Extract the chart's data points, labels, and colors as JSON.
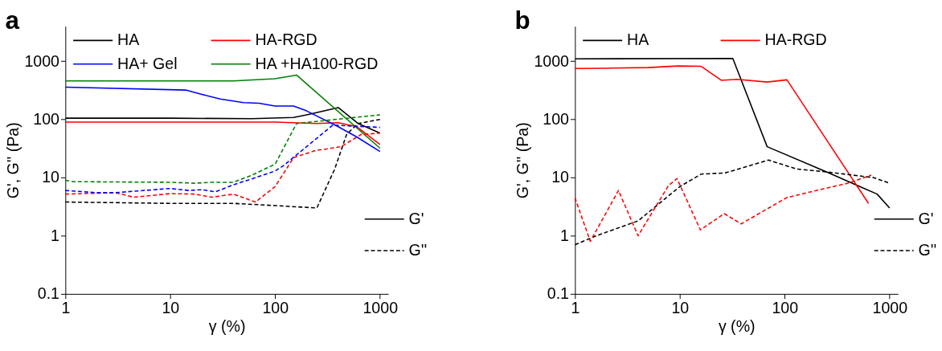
{
  "chart_data": [
    {
      "type": "line",
      "title": "a",
      "xlabel": "γ (%)",
      "ylabel": "G', G'' (Pa)",
      "log": "xy",
      "xlim": [
        1,
        1200
      ],
      "ylim": [
        0.1,
        4000
      ],
      "xticks": [
        1,
        10,
        100,
        1000
      ],
      "yticks": [
        0.1,
        1,
        10,
        100,
        1000
      ],
      "grid": false,
      "legend": "top left",
      "annotations": [
        "G'",
        "G''"
      ],
      "series": [
        {
          "name": "HA",
          "color": "#000000",
          "line_style": "solid",
          "x": [
            1,
            10,
            60,
            150,
            200,
            400,
            620,
            1000
          ],
          "values": [
            105,
            105,
            103,
            108,
            120,
            160,
            85,
            58
          ]
        },
        {
          "name": "HA-RGD",
          "color": "#ff0000",
          "line_style": "solid",
          "x": [
            1,
            100,
            250,
            400,
            600,
            1000
          ],
          "values": [
            90,
            90,
            85,
            88,
            75,
            37
          ]
        },
        {
          "name": "HA+ Gel",
          "color": "#0000ff",
          "line_style": "solid",
          "x": [
            1,
            14,
            20,
            30,
            50,
            70,
            100,
            150,
            200,
            400,
            600,
            1000
          ],
          "values": [
            360,
            320,
            270,
            225,
            195,
            190,
            170,
            170,
            140,
            75,
            50,
            28
          ]
        },
        {
          "name": "HA +HA100-RGD",
          "color": "#008000",
          "line_style": "solid",
          "x": [
            1,
            40,
            100,
            160,
            1000
          ],
          "values": [
            460,
            460,
            500,
            580,
            32
          ]
        },
        {
          "color": "#000000",
          "line_style": "dashed",
          "x": [
            1,
            10,
            40,
            100,
            250,
            370,
            480,
            615,
            1000
          ],
          "values": [
            3.8,
            3.6,
            3.6,
            3.3,
            3.0,
            14,
            55,
            85,
            100
          ]
        },
        {
          "color": "#ff0000",
          "line_style": "dashed",
          "x": [
            1,
            3,
            4.5,
            10,
            17,
            25,
            40,
            65,
            100,
            150,
            240,
            425,
            660,
            1000
          ],
          "values": [
            5.2,
            5.5,
            4.6,
            5.3,
            5.2,
            4.6,
            5.2,
            3.8,
            7,
            22,
            29,
            34,
            55,
            58
          ]
        },
        {
          "color": "#0000ff",
          "line_style": "dashed",
          "x": [
            1,
            2,
            3,
            10,
            15,
            20,
            27,
            40,
            60,
            100,
            120,
            355,
            1000
          ],
          "values": [
            6,
            5.5,
            5.5,
            6.5,
            6,
            6.2,
            5.7,
            7.5,
            9.5,
            13,
            16,
            80,
            73
          ]
        },
        {
          "color": "#008000",
          "line_style": "dashed",
          "x": [
            1,
            1.2,
            10,
            17,
            25,
            40,
            60,
            100,
            160,
            1000
          ],
          "values": [
            9,
            8.5,
            8.3,
            8,
            8.3,
            8.3,
            11,
            17,
            85,
            120
          ]
        }
      ]
    },
    {
      "type": "line",
      "title": "b",
      "xlabel": "γ (%)",
      "ylabel": "G', G'' (Pa)",
      "log": "xy",
      "xlim": [
        1,
        1200
      ],
      "ylim": [
        0.1,
        4000
      ],
      "xticks": [
        1,
        10,
        100,
        1000
      ],
      "yticks": [
        0.1,
        1,
        10,
        100,
        1000
      ],
      "grid": false,
      "legend": "top left",
      "annotations": [
        "G'",
        "G''"
      ],
      "series": [
        {
          "name": "HA",
          "color": "#000000",
          "line_style": "solid",
          "x": [
            1,
            32,
            68,
            250,
            520,
            760,
            1000
          ],
          "values": [
            1100,
            1120,
            34,
            12.5,
            7,
            5.2,
            3
          ]
        },
        {
          "name": "HA-RGD",
          "color": "#ff0000",
          "line_style": "solid",
          "x": [
            1,
            2,
            5,
            9.6,
            16,
            25,
            35,
            68,
            105,
            630
          ],
          "values": [
            750,
            760,
            780,
            830,
            820,
            470,
            490,
            440,
            480,
            3.6
          ]
        },
        {
          "color": "#000000",
          "line_style": "dashed",
          "x": [
            1,
            1.6,
            4,
            10,
            16,
            27,
            70,
            130,
            250,
            700,
            1000
          ],
          "values": [
            0.7,
            1,
            1.8,
            7,
            11.5,
            12,
            20,
            14,
            12.5,
            10,
            8
          ]
        },
        {
          "color": "#ff0000",
          "line_style": "dashed",
          "x": [
            1,
            1.4,
            2.6,
            4,
            7.8,
            9.4,
            15.7,
            26.5,
            38.5,
            104,
            200,
            400,
            670
          ],
          "values": [
            4.5,
            0.8,
            6,
            1,
            7.3,
            9.6,
            1.26,
            2.4,
            1.6,
            4.5,
            6,
            8,
            11
          ]
        }
      ]
    }
  ]
}
